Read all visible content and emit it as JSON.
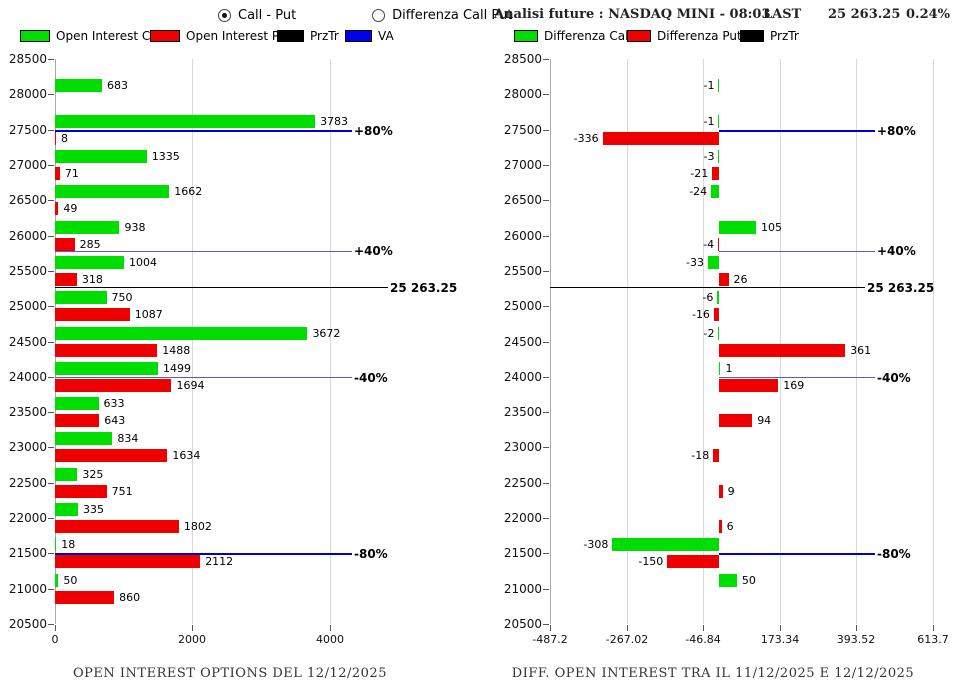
{
  "header": {
    "radio_call_put": "Call - Put",
    "radio_differenza": "Differenza Call Put",
    "analysis_title": "Analisi future : NASDAQ MINI - 08:03",
    "last_label": "LAST",
    "last_value": "25 263.25",
    "last_change": "0.24%"
  },
  "legend_left": [
    {
      "label": "Open Interest Call",
      "color": "#00dd00"
    },
    {
      "label": "Open Interest Put",
      "color": "#ee0000"
    },
    {
      "label": "PrzTr",
      "color": "#000000"
    },
    {
      "label": "VA",
      "color": "#0000ee"
    }
  ],
  "legend_right": [
    {
      "label": "Differenza Call",
      "color": "#00dd00"
    },
    {
      "label": "Differenza Put",
      "color": "#ee0000"
    },
    {
      "label": "PrzTr",
      "color": "#000000"
    }
  ],
  "colors": {
    "call": "#00dd00",
    "put": "#ee0000",
    "przt": "#000000",
    "va": "#0000cc",
    "va40": "#5a5ac0",
    "grid": "#d9d9d9"
  },
  "chart_data": [
    {
      "type": "bar",
      "orientation": "horizontal",
      "title": "OPEN INTEREST OPTIONS DEL 12/12/2025",
      "ylim": [
        20500,
        28500
      ],
      "y_ticks": [
        28500,
        28000,
        27500,
        27000,
        26500,
        26000,
        25500,
        25000,
        24500,
        24000,
        23500,
        23000,
        22500,
        22000,
        21500,
        21000,
        20500
      ],
      "xlim": [
        0,
        5673
      ],
      "x_ticks": [
        {
          "label": "0",
          "value": 0
        },
        {
          "label": "2000",
          "value": 2000
        },
        {
          "label": "4000",
          "value": 4000
        }
      ],
      "categories": [
        28000,
        27500,
        27000,
        26500,
        26000,
        25500,
        25000,
        24500,
        24000,
        23500,
        23000,
        22500,
        22000,
        21500,
        21000
      ],
      "series": [
        {
          "name": "Open Interest Call",
          "color": "#00dd00",
          "values": [
            683,
            3783,
            1335,
            1662,
            938,
            1004,
            750,
            3672,
            1499,
            633,
            834,
            325,
            335,
            18,
            50
          ]
        },
        {
          "name": "Open Interest Put",
          "color": "#ee0000",
          "values": [
            null,
            8,
            71,
            49,
            285,
            318,
            1087,
            1488,
            1694,
            643,
            1634,
            751,
            1802,
            2112,
            860
          ]
        }
      ],
      "ref_lines": [
        {
          "label": "+80%",
          "price": 27480,
          "kind": "va80",
          "from_zero": false
        },
        {
          "label": "+40%",
          "price": 25775,
          "kind": "va40",
          "from_zero": false
        },
        {
          "label": "25 263.25",
          "price": 25263.25,
          "kind": "przt",
          "from_zero": false
        },
        {
          "label": "-40%",
          "price": 23990,
          "kind": "va40",
          "from_zero": false
        },
        {
          "label": "-80%",
          "price": 21490,
          "kind": "va80",
          "from_zero": false
        }
      ]
    },
    {
      "type": "bar",
      "orientation": "horizontal",
      "title": "DIFF. OPEN INTEREST TRA IL 11/12/2025 E 12/12/2025",
      "ylim": [
        20500,
        28500
      ],
      "y_ticks": [
        28500,
        28000,
        27500,
        27000,
        26500,
        26000,
        25500,
        25000,
        24500,
        24000,
        23500,
        23000,
        22500,
        22000,
        21500,
        21000,
        20500
      ],
      "xlim": [
        -487.2,
        613.7
      ],
      "x_ticks": [
        {
          "label": "-487.2",
          "value": -487.2
        },
        {
          "label": "-267.02",
          "value": -267.02
        },
        {
          "label": "-46.84",
          "value": -46.84
        },
        {
          "label": "173.34",
          "value": 173.34
        },
        {
          "label": "393.52",
          "value": 393.52
        },
        {
          "label": "613.7",
          "value": 613.7
        }
      ],
      "categories": [
        28000,
        27500,
        27000,
        26500,
        26000,
        25500,
        25000,
        24500,
        24000,
        23500,
        23000,
        22500,
        22000,
        21500,
        21000
      ],
      "series": [
        {
          "name": "Differenza Call",
          "color": "#00dd00",
          "values": [
            -1,
            -1,
            -3,
            -24,
            105,
            -33,
            -6,
            -2,
            1,
            null,
            null,
            null,
            null,
            -308,
            50
          ]
        },
        {
          "name": "Differenza Put",
          "color": "#ee0000",
          "values": [
            null,
            -336,
            -21,
            null,
            -4,
            26,
            -16,
            361,
            169,
            94,
            -18,
            9,
            6,
            -150,
            null
          ]
        }
      ],
      "ref_lines": [
        {
          "label": "+80%",
          "price": 27480,
          "kind": "va80",
          "from_zero": true
        },
        {
          "label": "+40%",
          "price": 25775,
          "kind": "va40",
          "from_zero": true
        },
        {
          "label": "25 263.25",
          "price": 25263.25,
          "kind": "przt",
          "from_zero": false
        },
        {
          "label": "-40%",
          "price": 23990,
          "kind": "va40",
          "from_zero": true
        },
        {
          "label": "-80%",
          "price": 21490,
          "kind": "va80",
          "from_zero": true
        }
      ]
    }
  ]
}
